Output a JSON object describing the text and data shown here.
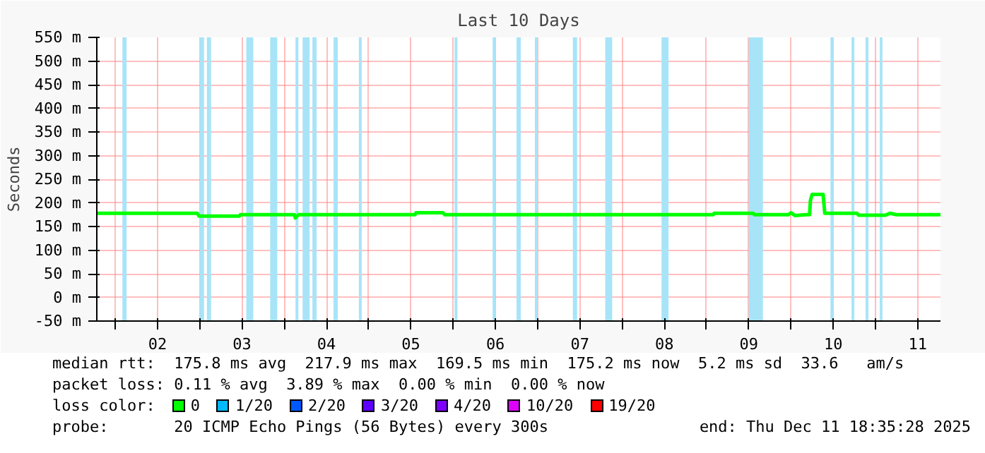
{
  "chart_data": {
    "type": "line",
    "title": "Last 10 Days",
    "ylabel": "Seconds",
    "xlim": [
      1.78,
      11.77
    ],
    "ylim": [
      -50,
      550
    ],
    "xticks": [
      {
        "value": 2,
        "label": null
      },
      {
        "value": 2.5,
        "label": "02"
      },
      {
        "value": 3,
        "label": null
      },
      {
        "value": 3.5,
        "label": "03"
      },
      {
        "value": 4,
        "label": null
      },
      {
        "value": 4.5,
        "label": "04"
      },
      {
        "value": 5,
        "label": null
      },
      {
        "value": 5.5,
        "label": "05"
      },
      {
        "value": 6,
        "label": null
      },
      {
        "value": 6.5,
        "label": "06"
      },
      {
        "value": 7,
        "label": null
      },
      {
        "value": 7.5,
        "label": "07"
      },
      {
        "value": 8,
        "label": null
      },
      {
        "value": 8.5,
        "label": "08"
      },
      {
        "value": 9,
        "label": null
      },
      {
        "value": 9.5,
        "label": "09"
      },
      {
        "value": 10,
        "label": null
      },
      {
        "value": 10.5,
        "label": "10"
      },
      {
        "value": 11,
        "label": null
      },
      {
        "value": 11.5,
        "label": "11"
      }
    ],
    "yticks": [
      {
        "value": -50,
        "label": "-50 m"
      },
      {
        "value": 0,
        "label": "0 m"
      },
      {
        "value": 50,
        "label": "50 m"
      },
      {
        "value": 100,
        "label": "100 m"
      },
      {
        "value": 150,
        "label": "150 m"
      },
      {
        "value": 200,
        "label": "200 m"
      },
      {
        "value": 250,
        "label": "250 m"
      },
      {
        "value": 300,
        "label": "300 m"
      },
      {
        "value": 350,
        "label": "350 m"
      },
      {
        "value": 400,
        "label": "400 m"
      },
      {
        "value": 450,
        "label": "450 m"
      },
      {
        "value": 500,
        "label": "500 m"
      },
      {
        "value": 550,
        "label": "550 m"
      }
    ],
    "grid": true,
    "legend": "bottom",
    "legend_title": "loss color:",
    "series": [
      {
        "name": "0",
        "color": "#00ff00",
        "x": [
          1.78,
          2.97,
          2.99,
          3.47,
          3.48,
          4.12,
          4.13,
          4.17,
          5.55,
          5.56,
          5.88,
          5.9,
          9.08,
          9.09,
          9.55,
          9.57,
          9.97,
          10.0,
          10.05,
          10.17,
          10.22,
          10.23,
          10.25,
          10.38,
          10.4,
          10.78,
          10.8,
          11.12,
          11.17,
          11.25,
          11.77
        ],
        "values": [
          178,
          178,
          172,
          172,
          175,
          175,
          168,
          175,
          175,
          179,
          179,
          175,
          175,
          178,
          178,
          175,
          175,
          179,
          173,
          175,
          175,
          205,
          218,
          218,
          178,
          178,
          174,
          174,
          178,
          175,
          175
        ]
      },
      {
        "name": "1/20",
        "color": "#00b8ff"
      },
      {
        "name": "2/20",
        "color": "#0059ff"
      },
      {
        "name": "3/20",
        "color": "#5e00ff"
      },
      {
        "name": "4/20",
        "color": "#7e00ff"
      },
      {
        "name": "10/20",
        "color": "#dd00ff"
      },
      {
        "name": "19/20",
        "color": "#ff0000"
      }
    ],
    "bands": [
      {
        "axis": "x",
        "from": 2.083,
        "to": 2.133,
        "color": "#a8e4f8"
      },
      {
        "axis": "x",
        "from": 3.0,
        "to": 3.05,
        "color": "#a8e4f8"
      },
      {
        "axis": "x",
        "from": 3.083,
        "to": 3.133,
        "color": "#a8e4f8"
      },
      {
        "axis": "x",
        "from": 3.55,
        "to": 3.633,
        "color": "#a8e4f8"
      },
      {
        "axis": "x",
        "from": 3.833,
        "to": 3.917,
        "color": "#a8e4f8"
      },
      {
        "axis": "x",
        "from": 4.133,
        "to": 4.167,
        "color": "#a8e4f8"
      },
      {
        "axis": "x",
        "from": 4.217,
        "to": 4.3,
        "color": "#a8e4f8"
      },
      {
        "axis": "x",
        "from": 4.333,
        "to": 4.383,
        "color": "#a8e4f8"
      },
      {
        "axis": "x",
        "from": 4.583,
        "to": 4.633,
        "color": "#a8e4f8"
      },
      {
        "axis": "x",
        "from": 4.883,
        "to": 4.917,
        "color": "#a8e4f8"
      },
      {
        "axis": "x",
        "from": 6.017,
        "to": 6.05,
        "color": "#a8e4f8"
      },
      {
        "axis": "x",
        "from": 6.467,
        "to": 6.5,
        "color": "#a8e4f8"
      },
      {
        "axis": "x",
        "from": 6.75,
        "to": 6.8,
        "color": "#a8e4f8"
      },
      {
        "axis": "x",
        "from": 6.967,
        "to": 7.0,
        "color": "#a8e4f8"
      },
      {
        "axis": "x",
        "from": 7.417,
        "to": 7.467,
        "color": "#a8e4f8"
      },
      {
        "axis": "x",
        "from": 7.8,
        "to": 7.883,
        "color": "#a8e4f8"
      },
      {
        "axis": "x",
        "from": 8.467,
        "to": 8.55,
        "color": "#a8e4f8"
      },
      {
        "axis": "x",
        "from": 9.5,
        "to": 9.667,
        "color": "#a8e4f8"
      },
      {
        "axis": "x",
        "from": 10.467,
        "to": 10.5,
        "color": "#a8e4f8"
      },
      {
        "axis": "x",
        "from": 10.717,
        "to": 10.75,
        "color": "#a8e4f8"
      },
      {
        "axis": "x",
        "from": 10.883,
        "to": 10.917,
        "color": "#a8e4f8"
      },
      {
        "axis": "x",
        "from": 11.05,
        "to": 11.083,
        "color": "#a8e4f8"
      }
    ],
    "annotations": [
      "median rtt:  175.8 ms avg  217.9 ms max  169.5 ms min  175.2 ms now  5.2 ms sd  33.6   am/s",
      "packet loss: 0.11 % avg  3.89 % max  0.00 % min  0.00 % now",
      "probe:       20 ICMP Echo Pings (56 Bytes) every 300s",
      "end: Thu Dec 11 18:35:28 2025"
    ]
  }
}
